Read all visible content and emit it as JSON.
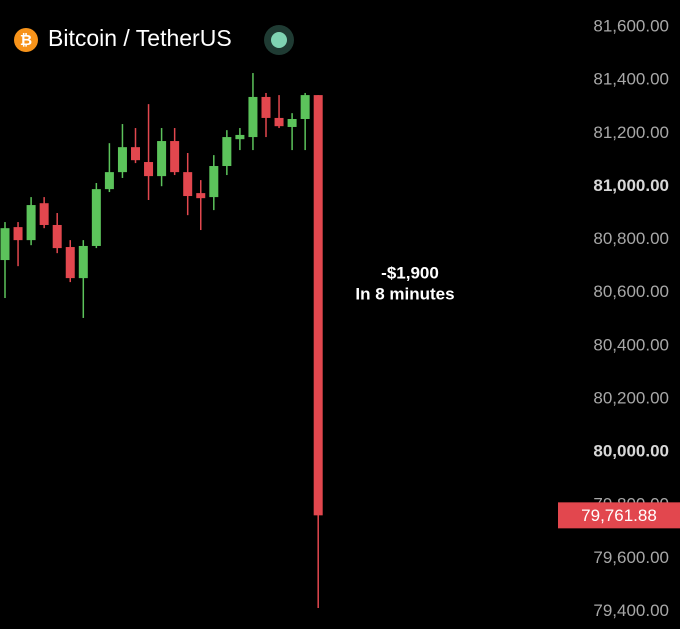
{
  "chart_data": {
    "type": "candlestick",
    "title": "Bitcoin / TetherUS",
    "header_icon": "₿",
    "categories": [
      null,
      null,
      null,
      null,
      null,
      null,
      null,
      null,
      null,
      null,
      null,
      null,
      null,
      null,
      null,
      null,
      null,
      null,
      null,
      null,
      null,
      null,
      null,
      null,
      null
    ],
    "open": [
      80723,
      80847,
      80798,
      80937,
      80855,
      80772,
      80655,
      80776,
      80990,
      81054,
      81148,
      81092,
      81039,
      81171,
      81054,
      80975,
      80960,
      81077,
      81178,
      81186,
      81337,
      81258,
      81224,
      81254,
      81344
    ],
    "high": [
      80866,
      80866,
      80960,
      80960,
      80900,
      80798,
      80798,
      81013,
      81163,
      81235,
      81220,
      81310,
      81220,
      81220,
      81126,
      81024,
      81118,
      81212,
      81220,
      81427,
      81352,
      81344,
      81276,
      81352,
      81344
    ],
    "low": [
      80580,
      80700,
      80779,
      80843,
      80749,
      80640,
      80505,
      80768,
      80979,
      81032,
      81088,
      80949,
      81001,
      81043,
      80892,
      80836,
      80911,
      81043,
      81137,
      81137,
      81186,
      81220,
      81137,
      81137,
      79413
    ],
    "close": [
      80843,
      80798,
      80930,
      80855,
      80768,
      80655,
      80776,
      80990,
      81054,
      81148,
      81099,
      81039,
      81171,
      81054,
      80964,
      80956,
      81077,
      81186,
      81194,
      81337,
      81258,
      81227,
      81254,
      81344,
      79761.88
    ],
    "up_color": "#5cc35b",
    "down_color": "#e2474e",
    "ylim": [
      79334,
      81702
    ],
    "yticks": [
      {
        "value": 79400,
        "label": "79,400.00"
      },
      {
        "value": 79600,
        "label": "79,600.00"
      },
      {
        "value": 79800,
        "label": "79,800.00"
      },
      {
        "value": 80000,
        "label": "80,000.00"
      },
      {
        "value": 80200,
        "label": "80,200.00"
      },
      {
        "value": 80400,
        "label": "80,400.00"
      },
      {
        "value": 80600,
        "label": "80,600.00"
      },
      {
        "value": 80800,
        "label": "80,800.00"
      },
      {
        "value": 81000,
        "label": "81,000.00"
      },
      {
        "value": 81200,
        "label": "81,200.00"
      },
      {
        "value": 81400,
        "label": "81,400.00"
      },
      {
        "value": 81600,
        "label": "81,600.00"
      }
    ],
    "last_price": {
      "value": 79761.88,
      "label": "79,761.88"
    },
    "annotations": [
      "-$1,900",
      "In 8 minutes"
    ],
    "grid": false
  }
}
